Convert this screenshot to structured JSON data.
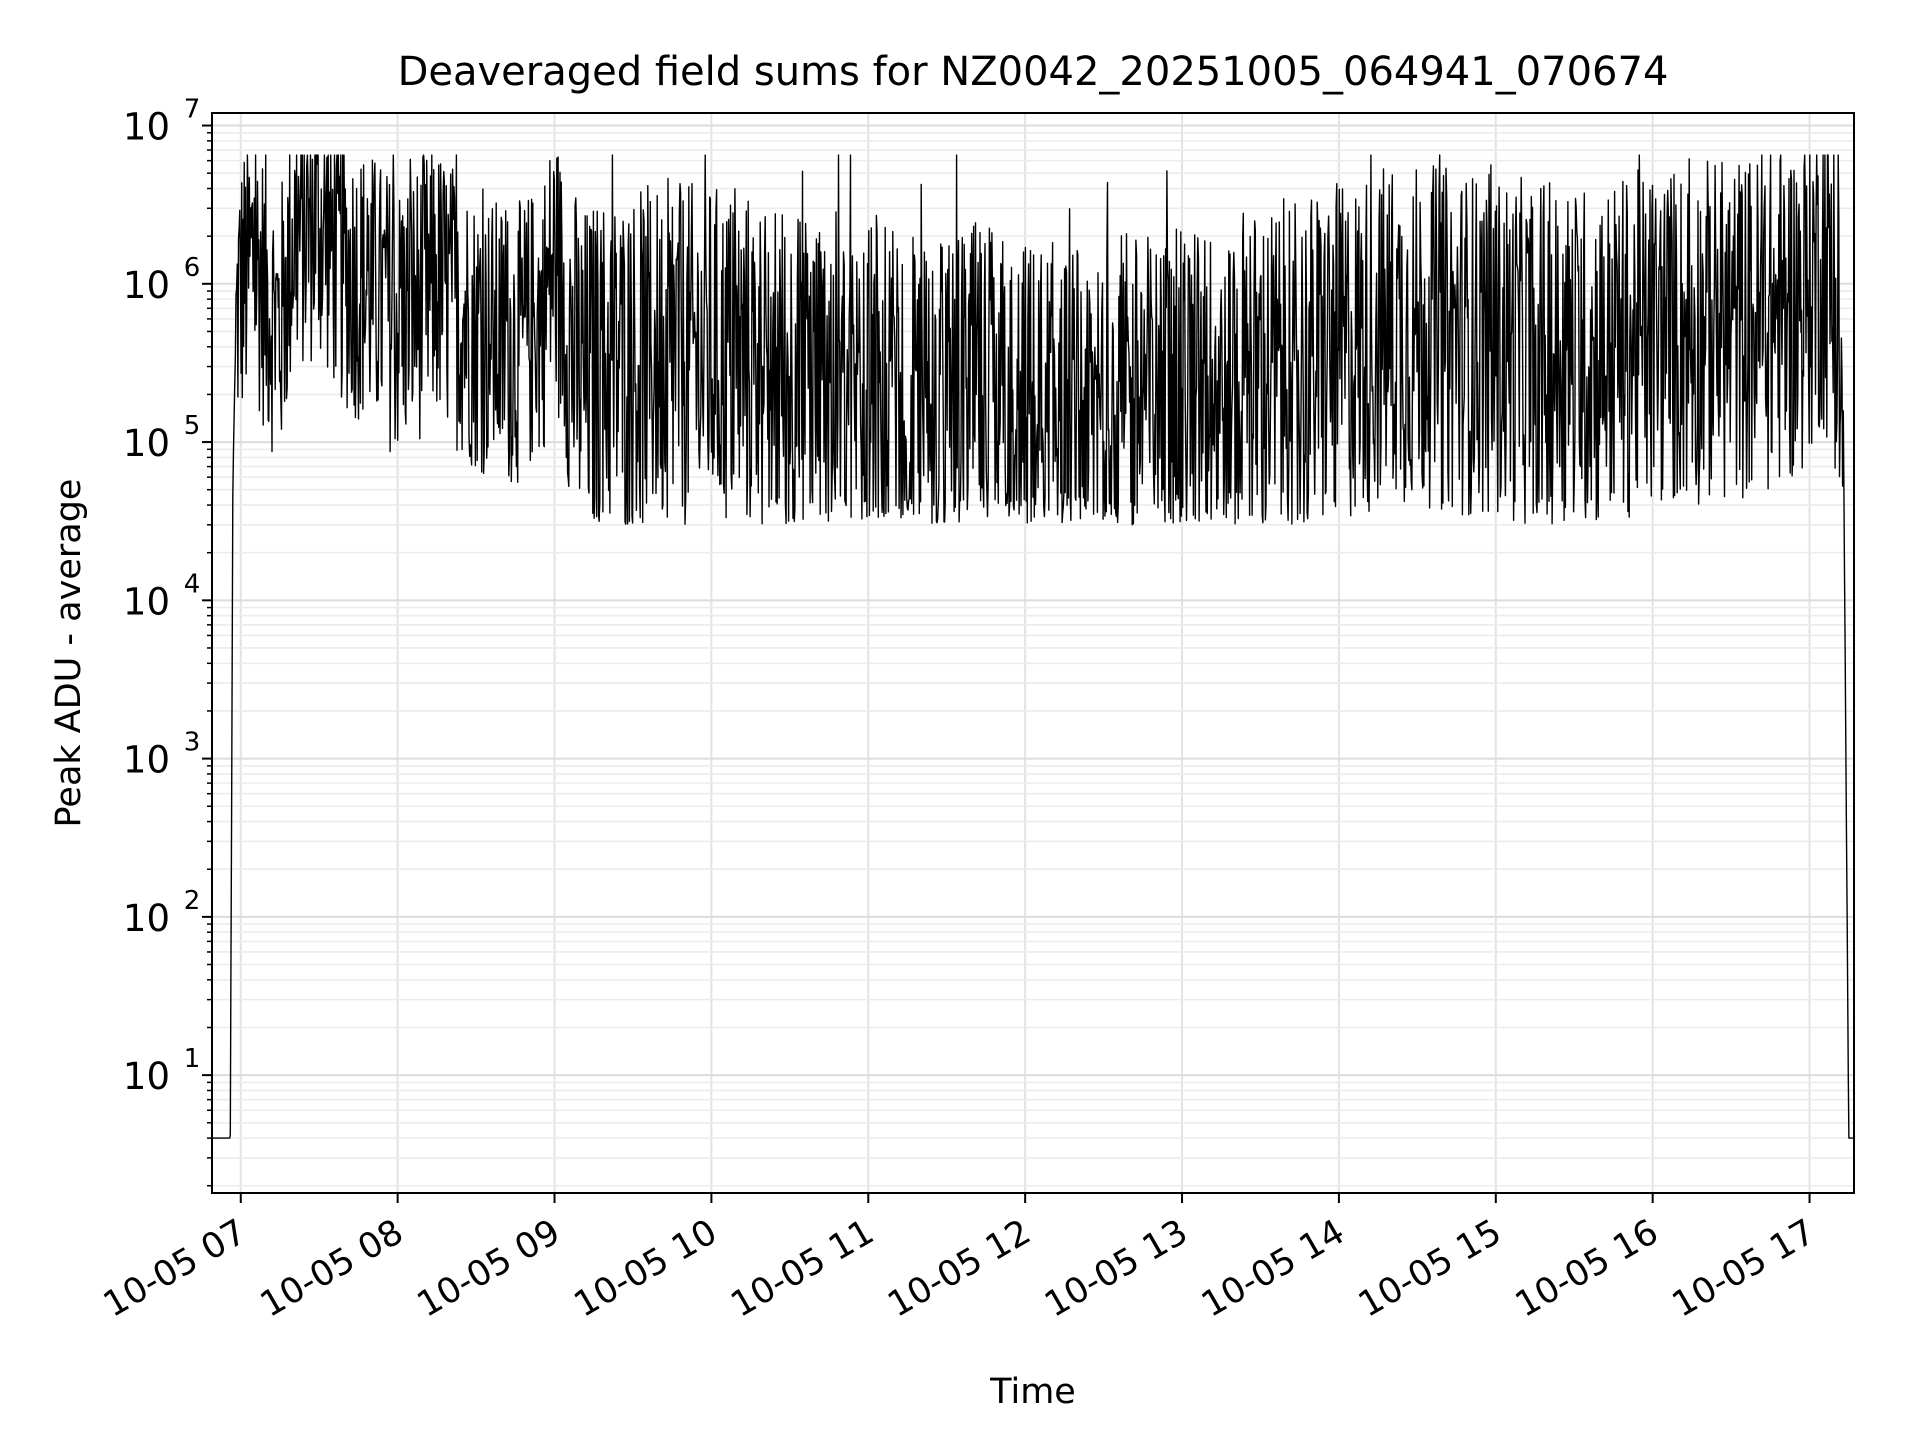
{
  "chart_data": {
    "type": "line",
    "title": "Deaveraged field sums for NZ0042_20251005_064941_070674",
    "xlabel": "Time",
    "ylabel": "Peak ADU - average",
    "yscale": "log",
    "xlim": [
      "2025-10-05T06:49:00",
      "2025-10-05T17:17:00"
    ],
    "ylim": [
      1.8,
      12000000
    ],
    "grid": true,
    "grid_minor": true,
    "line_color": "#000000",
    "xtick_labels": [
      {
        "t": "2025-10-05T07:00:00",
        "label": "10-05 07"
      },
      {
        "t": "2025-10-05T08:00:00",
        "label": "10-05 08"
      },
      {
        "t": "2025-10-05T09:00:00",
        "label": "10-05 09"
      },
      {
        "t": "2025-10-05T10:00:00",
        "label": "10-05 10"
      },
      {
        "t": "2025-10-05T11:00:00",
        "label": "10-05 11"
      },
      {
        "t": "2025-10-05T12:00:00",
        "label": "10-05 12"
      },
      {
        "t": "2025-10-05T13:00:00",
        "label": "10-05 13"
      },
      {
        "t": "2025-10-05T14:00:00",
        "label": "10-05 14"
      },
      {
        "t": "2025-10-05T15:00:00",
        "label": "10-05 15"
      },
      {
        "t": "2025-10-05T16:00:00",
        "label": "10-05 16"
      },
      {
        "t": "2025-10-05T17:00:00",
        "label": "10-05 17"
      }
    ],
    "ytick_labels": [
      {
        "value": 10,
        "base": "10",
        "exp": "1"
      },
      {
        "value": 100,
        "base": "10",
        "exp": "2"
      },
      {
        "value": 1000,
        "base": "10",
        "exp": "3"
      },
      {
        "value": 10000,
        "base": "10",
        "exp": "4"
      },
      {
        "value": 100000,
        "base": "10",
        "exp": "5"
      },
      {
        "value": 1000000,
        "base": "10",
        "exp": "6"
      },
      {
        "value": 10000000,
        "base": "10",
        "exp": "7"
      }
    ],
    "series": [
      {
        "x": [
          "2025-10-05T06:49:00",
          "2025-10-05T06:56:00",
          "2025-10-05T06:57:00",
          "2025-10-05T06:58:00",
          "2025-10-05T06:59:00",
          "2025-10-05T07:00:00",
          "2025-10-05T07:05:00",
          "2025-10-05T07:10:00",
          "2025-10-05T07:15:00",
          "2025-10-05T07:20:00",
          "2025-10-05T07:30:00",
          "2025-10-05T07:40:00",
          "2025-10-05T07:50:00",
          "2025-10-05T08:00:00",
          "2025-10-05T08:15:00",
          "2025-10-05T08:30:00",
          "2025-10-05T08:45:00",
          "2025-10-05T08:55:00",
          "2025-10-05T09:00:00",
          "2025-10-05T09:05:00",
          "2025-10-05T09:10:00",
          "2025-10-05T09:20:00",
          "2025-10-05T09:40:00",
          "2025-10-05T10:00:00",
          "2025-10-05T10:20:00",
          "2025-10-05T10:40:00",
          "2025-10-05T11:00:00",
          "2025-10-05T11:20:00",
          "2025-10-05T11:40:00",
          "2025-10-05T12:00:00",
          "2025-10-05T12:20:00",
          "2025-10-05T12:40:00",
          "2025-10-05T13:00:00",
          "2025-10-05T13:20:00",
          "2025-10-05T13:40:00",
          "2025-10-05T14:00:00",
          "2025-10-05T14:20:00",
          "2025-10-05T14:40:00",
          "2025-10-05T15:00:00",
          "2025-10-05T15:20:00",
          "2025-10-05T15:40:00",
          "2025-10-05T16:00:00",
          "2025-10-05T16:20:00",
          "2025-10-05T16:40:00",
          "2025-10-05T16:55:00",
          "2025-10-05T17:00:00",
          "2025-10-05T17:05:00",
          "2025-10-05T17:10:00",
          "2025-10-05T17:13:00",
          "2025-10-05T17:15:00",
          "2025-10-05T17:17:00"
        ],
        "y": [
          4,
          4,
          60000,
          400000,
          800000,
          900000,
          1500000,
          800000,
          500000,
          2000000,
          2500000,
          1200000,
          900000,
          600000,
          1000000,
          500000,
          400000,
          600000,
          1400000,
          500000,
          250000,
          300000,
          350000,
          350000,
          300000,
          250000,
          200000,
          150000,
          200000,
          150000,
          150000,
          170000,
          180000,
          220000,
          280000,
          350000,
          500000,
          450000,
          400000,
          350000,
          350000,
          450000,
          500000,
          550000,
          700000,
          1000000,
          1500000,
          800000,
          100000,
          4,
          4
        ]
      }
    ]
  }
}
